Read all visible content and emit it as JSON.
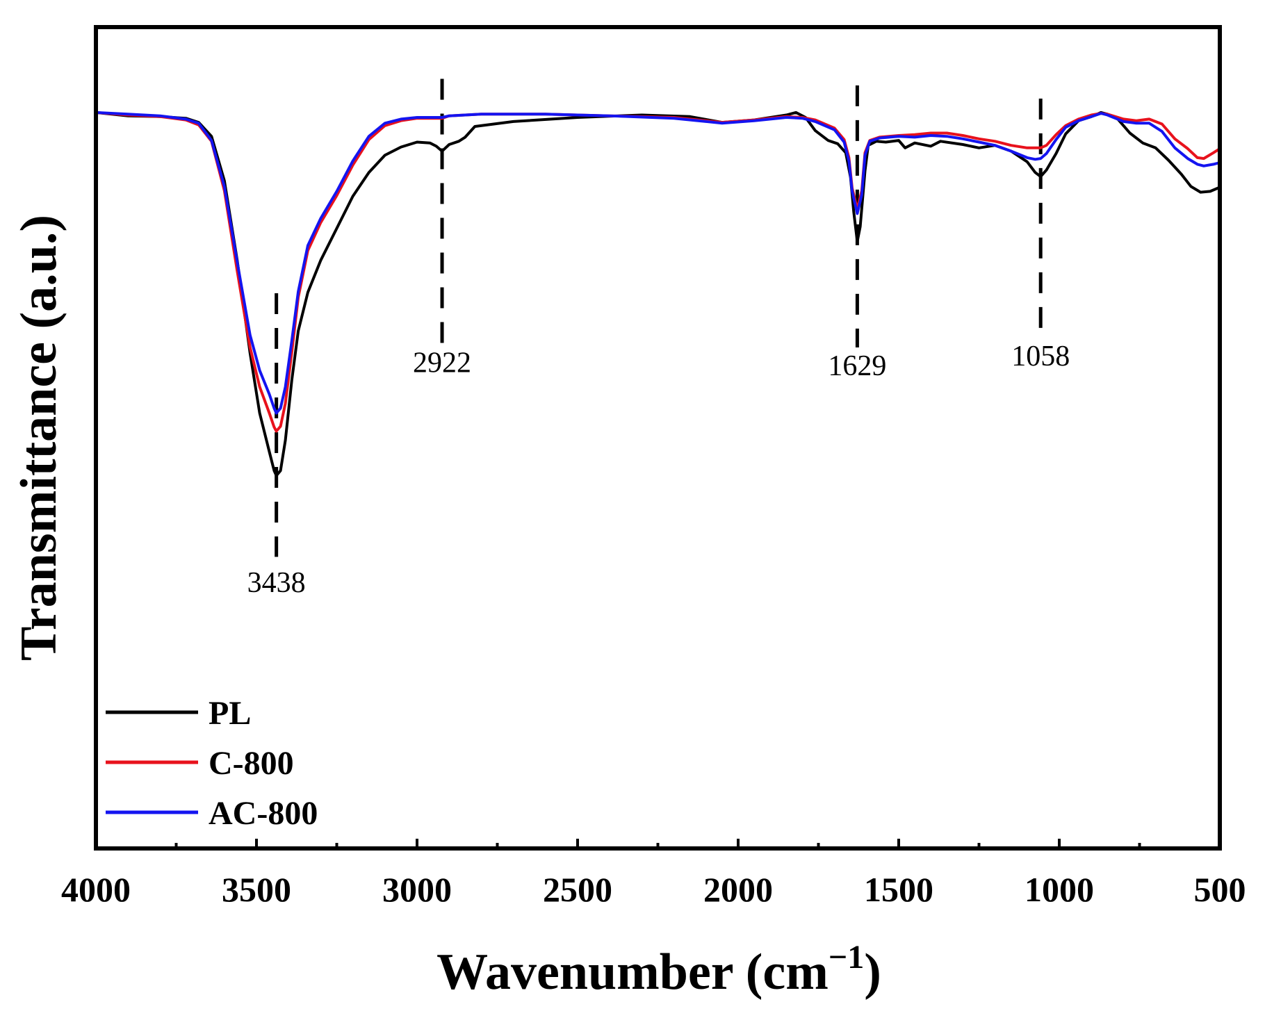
{
  "chart_data": {
    "type": "line",
    "title": "",
    "xlabel": "Wavenumber (cm",
    "xlabel_sup": "−1",
    "xlabel_close": ")",
    "ylabel": "Transmittance (a.u.)",
    "xlim": [
      4000,
      500
    ],
    "ylim": [
      0,
      100
    ],
    "x_reversed": true,
    "xticks": [
      4000,
      3500,
      3000,
      2500,
      2000,
      1500,
      1000,
      500
    ],
    "x_minor_step": 250,
    "y_ticks_visible": false,
    "grid": false,
    "legend_position": "bottom-left",
    "series": [
      {
        "name": "PL",
        "color": "#000000",
        "points": [
          [
            4000,
            89.6
          ],
          [
            3900,
            89.2
          ],
          [
            3800,
            89.1
          ],
          [
            3720,
            88.9
          ],
          [
            3680,
            88.4
          ],
          [
            3640,
            86.7
          ],
          [
            3600,
            81.3
          ],
          [
            3560,
            71.6
          ],
          [
            3520,
            60.3
          ],
          [
            3490,
            53.0
          ],
          [
            3460,
            48.3
          ],
          [
            3445,
            46.0
          ],
          [
            3438,
            45.4
          ],
          [
            3425,
            46.0
          ],
          [
            3410,
            49.7
          ],
          [
            3390,
            57.0
          ],
          [
            3370,
            63.0
          ],
          [
            3340,
            67.7
          ],
          [
            3300,
            71.6
          ],
          [
            3250,
            75.5
          ],
          [
            3200,
            79.4
          ],
          [
            3150,
            82.3
          ],
          [
            3100,
            84.4
          ],
          [
            3050,
            85.4
          ],
          [
            3000,
            86.0
          ],
          [
            2960,
            85.9
          ],
          [
            2940,
            85.5
          ],
          [
            2922,
            84.9
          ],
          [
            2900,
            85.7
          ],
          [
            2870,
            86.1
          ],
          [
            2850,
            86.6
          ],
          [
            2820,
            87.9
          ],
          [
            2700,
            88.5
          ],
          [
            2500,
            89.0
          ],
          [
            2300,
            89.3
          ],
          [
            2150,
            89.1
          ],
          [
            2050,
            88.4
          ],
          [
            1950,
            88.7
          ],
          [
            1850,
            89.3
          ],
          [
            1820,
            89.6
          ],
          [
            1790,
            89.0
          ],
          [
            1760,
            87.4
          ],
          [
            1720,
            86.2
          ],
          [
            1690,
            85.8
          ],
          [
            1665,
            84.7
          ],
          [
            1650,
            81.7
          ],
          [
            1640,
            77.5
          ],
          [
            1629,
            73.9
          ],
          [
            1620,
            75.7
          ],
          [
            1605,
            82.5
          ],
          [
            1595,
            85.6
          ],
          [
            1570,
            86.1
          ],
          [
            1540,
            86.0
          ],
          [
            1500,
            86.2
          ],
          [
            1480,
            85.3
          ],
          [
            1450,
            85.9
          ],
          [
            1400,
            85.5
          ],
          [
            1370,
            86.1
          ],
          [
            1300,
            85.7
          ],
          [
            1250,
            85.3
          ],
          [
            1200,
            85.6
          ],
          [
            1150,
            84.9
          ],
          [
            1100,
            83.6
          ],
          [
            1075,
            82.3
          ],
          [
            1058,
            81.8
          ],
          [
            1040,
            82.6
          ],
          [
            1010,
            84.6
          ],
          [
            980,
            87.0
          ],
          [
            940,
            88.6
          ],
          [
            900,
            89.1
          ],
          [
            870,
            89.6
          ],
          [
            850,
            89.4
          ],
          [
            820,
            88.9
          ],
          [
            780,
            87.1
          ],
          [
            740,
            85.9
          ],
          [
            700,
            85.3
          ],
          [
            660,
            83.8
          ],
          [
            620,
            82.1
          ],
          [
            590,
            80.6
          ],
          [
            560,
            79.9
          ],
          [
            530,
            80.0
          ],
          [
            500,
            80.5
          ]
        ]
      },
      {
        "name": "C-800",
        "color": "#e8121c",
        "points": [
          [
            4000,
            89.6
          ],
          [
            3900,
            89.3
          ],
          [
            3800,
            89.1
          ],
          [
            3720,
            88.7
          ],
          [
            3680,
            88.1
          ],
          [
            3640,
            86.1
          ],
          [
            3600,
            80.1
          ],
          [
            3560,
            70.3
          ],
          [
            3520,
            61.0
          ],
          [
            3490,
            56.2
          ],
          [
            3460,
            53.0
          ],
          [
            3445,
            51.3
          ],
          [
            3438,
            50.8
          ],
          [
            3425,
            51.4
          ],
          [
            3410,
            54.2
          ],
          [
            3390,
            60.4
          ],
          [
            3370,
            67.1
          ],
          [
            3340,
            72.8
          ],
          [
            3300,
            76.2
          ],
          [
            3250,
            79.5
          ],
          [
            3200,
            83.2
          ],
          [
            3150,
            86.3
          ],
          [
            3100,
            88.0
          ],
          [
            3050,
            88.6
          ],
          [
            3000,
            88.9
          ],
          [
            2950,
            88.9
          ],
          [
            2922,
            88.9
          ],
          [
            2900,
            89.2
          ],
          [
            2800,
            89.4
          ],
          [
            2600,
            89.4
          ],
          [
            2400,
            89.2
          ],
          [
            2200,
            89.0
          ],
          [
            2100,
            88.6
          ],
          [
            2050,
            88.4
          ],
          [
            1950,
            88.7
          ],
          [
            1850,
            89.1
          ],
          [
            1800,
            89.0
          ],
          [
            1760,
            88.7
          ],
          [
            1700,
            87.7
          ],
          [
            1670,
            86.3
          ],
          [
            1655,
            84.1
          ],
          [
            1645,
            80.4
          ],
          [
            1629,
            77.8
          ],
          [
            1615,
            80.1
          ],
          [
            1605,
            84.7
          ],
          [
            1590,
            86.2
          ],
          [
            1560,
            86.6
          ],
          [
            1500,
            86.8
          ],
          [
            1450,
            86.9
          ],
          [
            1400,
            87.1
          ],
          [
            1350,
            87.1
          ],
          [
            1300,
            86.8
          ],
          [
            1250,
            86.4
          ],
          [
            1200,
            86.1
          ],
          [
            1150,
            85.6
          ],
          [
            1100,
            85.3
          ],
          [
            1058,
            85.3
          ],
          [
            1040,
            85.6
          ],
          [
            1010,
            86.9
          ],
          [
            980,
            88.0
          ],
          [
            940,
            88.8
          ],
          [
            900,
            89.3
          ],
          [
            870,
            89.5
          ],
          [
            850,
            89.4
          ],
          [
            800,
            88.8
          ],
          [
            760,
            88.6
          ],
          [
            720,
            88.8
          ],
          [
            680,
            88.2
          ],
          [
            640,
            86.4
          ],
          [
            600,
            85.2
          ],
          [
            570,
            84.1
          ],
          [
            550,
            84.0
          ],
          [
            520,
            84.7
          ],
          [
            500,
            85.2
          ]
        ]
      },
      {
        "name": "AC-800",
        "color": "#1414f0",
        "points": [
          [
            4000,
            89.6
          ],
          [
            3900,
            89.4
          ],
          [
            3800,
            89.2
          ],
          [
            3720,
            88.8
          ],
          [
            3680,
            88.3
          ],
          [
            3640,
            86.2
          ],
          [
            3600,
            80.6
          ],
          [
            3560,
            71.4
          ],
          [
            3520,
            62.5
          ],
          [
            3490,
            58.2
          ],
          [
            3460,
            55.3
          ],
          [
            3445,
            53.6
          ],
          [
            3438,
            53.0
          ],
          [
            3425,
            53.6
          ],
          [
            3410,
            56.2
          ],
          [
            3390,
            61.8
          ],
          [
            3370,
            67.8
          ],
          [
            3340,
            73.4
          ],
          [
            3300,
            76.7
          ],
          [
            3250,
            80.0
          ],
          [
            3200,
            83.7
          ],
          [
            3150,
            86.7
          ],
          [
            3100,
            88.3
          ],
          [
            3050,
            88.8
          ],
          [
            3000,
            89.0
          ],
          [
            2950,
            89.0
          ],
          [
            2922,
            89.0
          ],
          [
            2900,
            89.2
          ],
          [
            2800,
            89.4
          ],
          [
            2600,
            89.4
          ],
          [
            2400,
            89.2
          ],
          [
            2200,
            88.9
          ],
          [
            2100,
            88.5
          ],
          [
            2050,
            88.3
          ],
          [
            1950,
            88.6
          ],
          [
            1850,
            89.0
          ],
          [
            1800,
            88.9
          ],
          [
            1760,
            88.5
          ],
          [
            1700,
            87.5
          ],
          [
            1670,
            86.0
          ],
          [
            1655,
            83.7
          ],
          [
            1645,
            80.0
          ],
          [
            1629,
            77.3
          ],
          [
            1615,
            79.6
          ],
          [
            1605,
            84.4
          ],
          [
            1590,
            86.1
          ],
          [
            1560,
            86.5
          ],
          [
            1500,
            86.7
          ],
          [
            1450,
            86.6
          ],
          [
            1400,
            86.8
          ],
          [
            1350,
            86.7
          ],
          [
            1300,
            86.4
          ],
          [
            1250,
            86.0
          ],
          [
            1200,
            85.6
          ],
          [
            1150,
            84.9
          ],
          [
            1100,
            84.1
          ],
          [
            1075,
            83.9
          ],
          [
            1058,
            84.0
          ],
          [
            1040,
            84.6
          ],
          [
            1010,
            86.3
          ],
          [
            980,
            87.8
          ],
          [
            940,
            88.6
          ],
          [
            900,
            89.1
          ],
          [
            870,
            89.5
          ],
          [
            850,
            89.3
          ],
          [
            800,
            88.5
          ],
          [
            760,
            88.3
          ],
          [
            720,
            88.3
          ],
          [
            680,
            87.3
          ],
          [
            640,
            85.3
          ],
          [
            600,
            84.0
          ],
          [
            570,
            83.3
          ],
          [
            550,
            83.1
          ],
          [
            520,
            83.3
          ],
          [
            500,
            83.5
          ]
        ]
      }
    ],
    "annotations": [
      {
        "label": "3438",
        "x": 3438,
        "y_from": 67.6,
        "y_to": 35.5,
        "label_y": 31.2
      },
      {
        "label": "2922",
        "x": 2922,
        "y_from": 93.7,
        "y_to": 61.2,
        "label_y": 58.0
      },
      {
        "label": "1629",
        "x": 1629,
        "y_from": 92.9,
        "y_to": 61.0,
        "label_y": 57.6
      },
      {
        "label": "1058",
        "x": 1058,
        "y_from": 91.3,
        "y_to": 63.1,
        "label_y": 58.8
      }
    ]
  }
}
